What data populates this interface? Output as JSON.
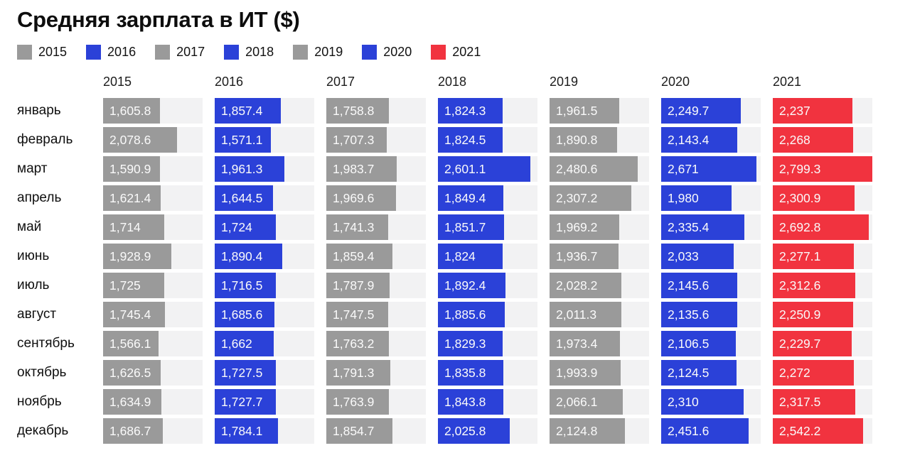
{
  "chart_data": {
    "type": "bar",
    "orientation": "horizontal",
    "title": "Средняя зарплата в ИТ ($)",
    "legend_position": "top",
    "grid": false,
    "x_range": [
      0,
      2800
    ],
    "track_color": "#F2F2F3",
    "categories": [
      "январь",
      "февраль",
      "март",
      "апрель",
      "май",
      "июнь",
      "июль",
      "август",
      "сентябрь",
      "октябрь",
      "ноябрь",
      "декабрь"
    ],
    "series": [
      {
        "name": "2015",
        "color": "#9A9A9A",
        "values": [
          1605.8,
          2078.6,
          1590.9,
          1621.4,
          1714,
          1928.9,
          1725,
          1745.4,
          1566.1,
          1626.5,
          1634.9,
          1686.7
        ]
      },
      {
        "name": "2016",
        "color": "#2B41D8",
        "values": [
          1857.4,
          1571.1,
          1961.3,
          1644.5,
          1724,
          1890.4,
          1716.5,
          1685.6,
          1662,
          1727.5,
          1727.7,
          1784.1
        ]
      },
      {
        "name": "2017",
        "color": "#9A9A9A",
        "values": [
          1758.8,
          1707.3,
          1983.7,
          1969.6,
          1741.3,
          1859.4,
          1787.9,
          1747.5,
          1763.2,
          1791.3,
          1763.9,
          1854.7
        ]
      },
      {
        "name": "2018",
        "color": "#2B41D8",
        "values": [
          1824.3,
          1824.5,
          2601.1,
          1849.4,
          1851.7,
          1824,
          1892.4,
          1885.6,
          1829.3,
          1835.8,
          1843.8,
          2025.8
        ]
      },
      {
        "name": "2019",
        "color": "#9A9A9A",
        "values": [
          1961.5,
          1890.8,
          2480.6,
          2307.2,
          1969.2,
          1936.7,
          2028.2,
          2011.3,
          1973.4,
          1993.9,
          2066.1,
          2124.8
        ]
      },
      {
        "name": "2020",
        "color": "#2B41D8",
        "values": [
          2249.7,
          2143.4,
          2671,
          1980,
          2335.4,
          2033,
          2145.6,
          2135.6,
          2106.5,
          2124.5,
          2310,
          2451.6
        ]
      },
      {
        "name": "2021",
        "color": "#F1333F",
        "values": [
          2237,
          2268,
          2799.3,
          2300.9,
          2692.8,
          2277.1,
          2312.6,
          2250.9,
          2229.7,
          2272,
          2317.5,
          2542.2
        ]
      }
    ]
  }
}
